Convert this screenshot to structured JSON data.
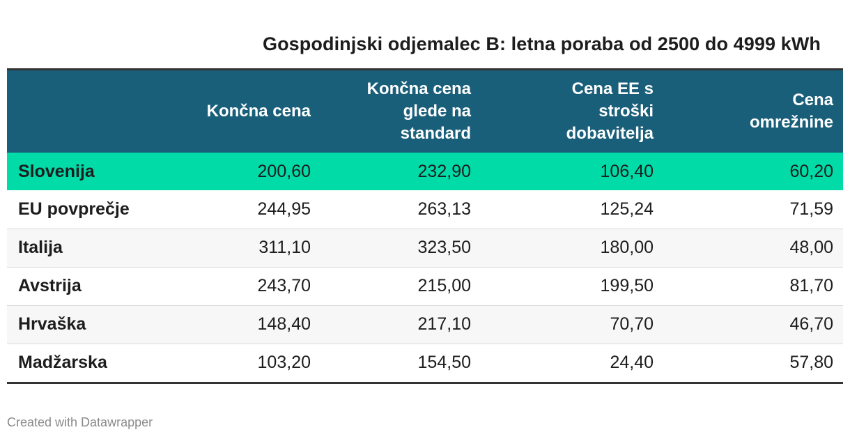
{
  "title": "Gospodinjski odjemalec B: letna poraba od 2500 do 4999 kWh",
  "credit": "Created with Datawrapper",
  "colors": {
    "header_bg": "#1a5f7a",
    "highlight_bg": "#00dba8",
    "rule": "#333333"
  },
  "chart_data": {
    "type": "table",
    "title": "Gospodinjski odjemalec B: letna poraba od 2500 do 4999 kWh",
    "columns": [
      "",
      "Končna cena",
      "Končna cena glede na standard",
      "Cena EE s stroški dobavitelja",
      "Cena omrežnine"
    ],
    "header_lines": [
      [],
      [
        "Končna cena"
      ],
      [
        "Končna cena",
        "glede na",
        "standard"
      ],
      [
        "Cena EE s",
        "stroški",
        "dobavitelja"
      ],
      [
        "Cena",
        "omrežnine"
      ]
    ],
    "rows": [
      {
        "name": "Slovenija",
        "values": [
          "200,60",
          "232,90",
          "106,40",
          "60,20"
        ],
        "highlight": true
      },
      {
        "name": "EU povprečje",
        "values": [
          "244,95",
          "263,13",
          "125,24",
          "71,59"
        ]
      },
      {
        "name": "Italija",
        "values": [
          "311,10",
          "323,50",
          "180,00",
          "48,00"
        ]
      },
      {
        "name": "Avstrija",
        "values": [
          "243,70",
          "215,00",
          "199,50",
          "81,70"
        ]
      },
      {
        "name": "Hrvaška",
        "values": [
          "148,40",
          "217,10",
          "70,70",
          "46,70"
        ]
      },
      {
        "name": "Madžarska",
        "values": [
          "103,20",
          "154,50",
          "24,40",
          "57,80"
        ]
      }
    ]
  }
}
